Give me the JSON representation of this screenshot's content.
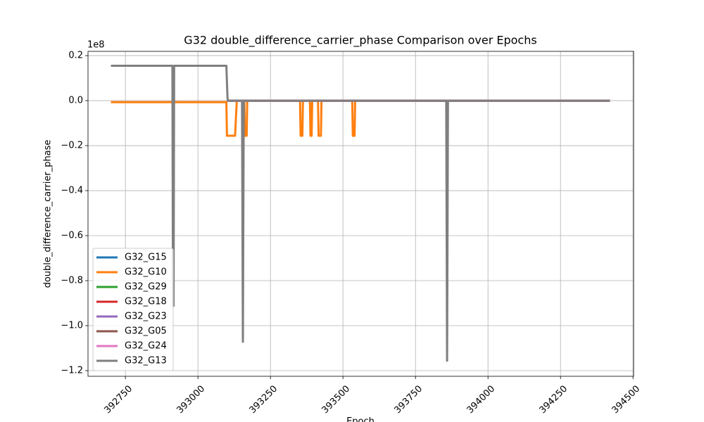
{
  "chart_data": {
    "type": "line",
    "title": "G32 double_difference_carrier_phase Comparison over Epochs",
    "x_label": "Epoch",
    "y_label": "double_difference_carrier_phase",
    "y_scale_label": "1e8",
    "xlim": [
      392621,
      394502
    ],
    "ylim": [
      -1.225,
      0.219
    ],
    "xticks": [
      392750,
      393000,
      393250,
      393500,
      393750,
      394000,
      394250,
      394500
    ],
    "yticks": [
      {
        "value": -1.2,
        "label": "−1.2"
      },
      {
        "value": -1.0,
        "label": "−1.0"
      },
      {
        "value": -0.8,
        "label": "−0.8"
      },
      {
        "value": -0.6,
        "label": "−0.6"
      },
      {
        "value": -0.4,
        "label": "−0.4"
      },
      {
        "value": -0.2,
        "label": "−0.2"
      },
      {
        "value": 0.0,
        "label": "0.0"
      },
      {
        "value": 0.2,
        "label": "0.2"
      }
    ],
    "grid": true,
    "legend": "lower left",
    "series": [
      {
        "name": "G32_G15",
        "color": "#1f77b4",
        "x": [
          393100,
          394420
        ],
        "values": [
          0,
          0
        ]
      },
      {
        "name": "G32_G10",
        "color": "#ff7f0e",
        "x": [
          392700,
          393098,
          393100,
          393128,
          393134,
          393160,
          393162,
          393168,
          393170,
          393352,
          393354,
          393360,
          393362,
          393386,
          393388,
          393392,
          393394,
          393414,
          393416,
          393424,
          393426,
          393532,
          393534,
          393540,
          393542,
          394420
        ],
        "values": [
          -0.007,
          -0.007,
          -0.156,
          -0.156,
          0,
          0,
          -0.156,
          -0.156,
          0,
          0,
          -0.156,
          -0.156,
          0,
          0,
          -0.156,
          -0.156,
          0,
          0,
          -0.156,
          -0.156,
          0,
          0,
          -0.156,
          -0.156,
          0,
          0
        ]
      },
      {
        "name": "G32_G29",
        "color": "#2ca02c",
        "x": [
          393100,
          394420
        ],
        "values": [
          0,
          0
        ]
      },
      {
        "name": "G32_G18",
        "color": "#d62728",
        "x": [
          393100,
          394420
        ],
        "values": [
          0,
          0
        ]
      },
      {
        "name": "G32_G23",
        "color": "#9467bd",
        "x": [
          393100,
          394420
        ],
        "values": [
          0,
          0
        ]
      },
      {
        "name": "G32_G05",
        "color": "#8c564b",
        "x": [
          393100,
          394420
        ],
        "values": [
          0,
          0
        ]
      },
      {
        "name": "G32_G24",
        "color": "#e377c2",
        "x": [
          393100,
          394420
        ],
        "values": [
          0,
          0
        ]
      },
      {
        "name": "G32_G13",
        "color": "#7f7f7f",
        "x": [
          392700,
          392912,
          392914,
          392916,
          392918,
          393098,
          393102,
          393104,
          393152,
          393155,
          393158,
          393856,
          393859,
          393862,
          394420
        ],
        "values": [
          0.155,
          0.155,
          -0.912,
          -0.912,
          0.155,
          0.155,
          0.01,
          0,
          0,
          -1.072,
          0,
          0,
          -1.156,
          0,
          0
        ]
      }
    ]
  }
}
